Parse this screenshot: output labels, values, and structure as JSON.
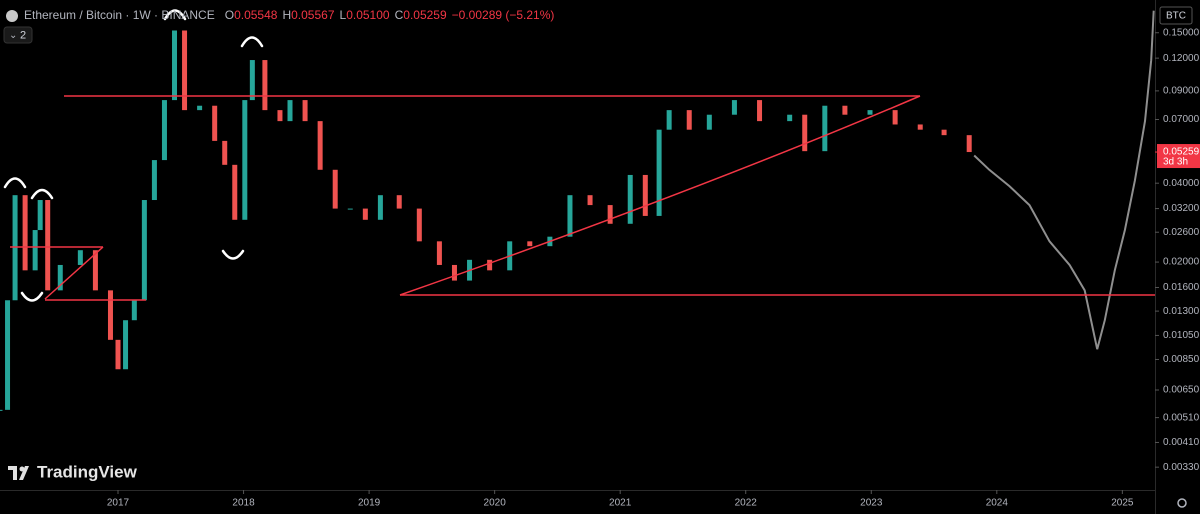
{
  "chart_data": {
    "type": "candlestick",
    "title": "Ethereum / Bitcoin · 1W · BINANCE",
    "ohlc": [
      {
        "label": "O",
        "value": "0.05548"
      },
      {
        "label": "H",
        "value": "0.05567"
      },
      {
        "label": "L",
        "value": "0.05100"
      },
      {
        "label": "C",
        "value": "0.05259"
      }
    ],
    "change": "−0.00289 (−5.21%)",
    "interval_badge": "2",
    "currency": "BTC",
    "last_price": {
      "value": 0.05259,
      "label": "0.05259"
    },
    "countdown": "3d 3h",
    "watermark": "TradingView",
    "log_scale": true,
    "up_color": "#26a69a",
    "down_color": "#ef5350",
    "x": [
      2016.06,
      2016.12,
      2016.18,
      2016.26,
      2016.34,
      2016.38,
      2016.44,
      2016.54,
      2016.7,
      2016.82,
      2016.94,
      2017.0,
      2017.06,
      2017.13,
      2017.21,
      2017.29,
      2017.37,
      2017.45,
      2017.53,
      2017.65,
      2017.77,
      2017.85,
      2017.93,
      2018.01,
      2018.07,
      2018.17,
      2018.29,
      2018.37,
      2018.49,
      2018.61,
      2018.73,
      2018.85,
      2018.97,
      2019.09,
      2019.24,
      2019.4,
      2019.56,
      2019.68,
      2019.8,
      2019.96,
      2020.12,
      2020.28,
      2020.44,
      2020.6,
      2020.76,
      2020.92,
      2021.08,
      2021.2,
      2021.31,
      2021.39,
      2021.55,
      2021.71,
      2021.91,
      2022.11,
      2022.35,
      2022.47,
      2022.63,
      2022.79,
      2022.99,
      2023.19,
      2023.39,
      2023.58,
      2023.78
    ],
    "values": [
      0.00546,
      0.0143,
      0.036,
      0.0186,
      0.0265,
      0.0345,
      0.0156,
      0.0195,
      0.0222,
      0.0156,
      0.0101,
      0.0078,
      0.012,
      0.0143,
      0.0345,
      0.049,
      0.083,
      0.153,
      0.076,
      0.079,
      0.058,
      0.047,
      0.029,
      0.083,
      0.118,
      0.076,
      0.069,
      0.083,
      0.069,
      0.045,
      0.032,
      0.032,
      0.029,
      0.036,
      0.032,
      0.024,
      0.0195,
      0.017,
      0.0204,
      0.0186,
      0.024,
      0.023,
      0.025,
      0.036,
      0.033,
      0.028,
      0.043,
      0.03,
      0.064,
      0.076,
      0.064,
      0.073,
      0.083,
      0.069,
      0.073,
      0.053,
      0.079,
      0.073,
      0.076,
      0.067,
      0.064,
      0.061,
      0.05259
    ],
    "projection": {
      "color": "#8f8f8f",
      "x": [
        2023.82,
        2023.94,
        2024.1,
        2024.26,
        2024.42,
        2024.58,
        2024.7,
        2024.8,
        2024.86,
        2024.94,
        2025.02,
        2025.1,
        2025.18,
        2025.23,
        2025.25
      ],
      "values": [
        0.051,
        0.045,
        0.039,
        0.033,
        0.024,
        0.0195,
        0.0156,
        0.0093,
        0.012,
        0.0186,
        0.0265,
        0.041,
        0.069,
        0.118,
        0.182
      ]
    },
    "xlim": [
      2016.06,
      2025.26
    ],
    "xticks": [
      2017,
      2018,
      2019,
      2020,
      2021,
      2022,
      2023,
      2024,
      2025
    ],
    "ylim": [
      0.0027,
      0.2
    ],
    "yticks": [
      {
        "value": 0.15,
        "label": "0.15000"
      },
      {
        "value": 0.12,
        "label": "0.12000"
      },
      {
        "value": 0.09,
        "label": "0.09000"
      },
      {
        "value": 0.07,
        "label": "0.07000"
      },
      {
        "value": 0.04,
        "label": "0.04000"
      },
      {
        "value": 0.032,
        "label": "0.03200"
      },
      {
        "value": 0.026,
        "label": "0.02600"
      },
      {
        "value": 0.02,
        "label": "0.02000"
      },
      {
        "value": 0.016,
        "label": "0.01600"
      },
      {
        "value": 0.013,
        "label": "0.01300"
      },
      {
        "value": 0.0105,
        "label": "0.01050"
      },
      {
        "value": 0.0085,
        "label": "0.00850"
      },
      {
        "value": 0.0065,
        "label": "0.00650"
      },
      {
        "value": 0.0051,
        "label": "0.00510"
      },
      {
        "value": 0.0041,
        "label": "0.00410"
      },
      {
        "value": 0.0033,
        "label": "0.00330"
      }
    ]
  }
}
